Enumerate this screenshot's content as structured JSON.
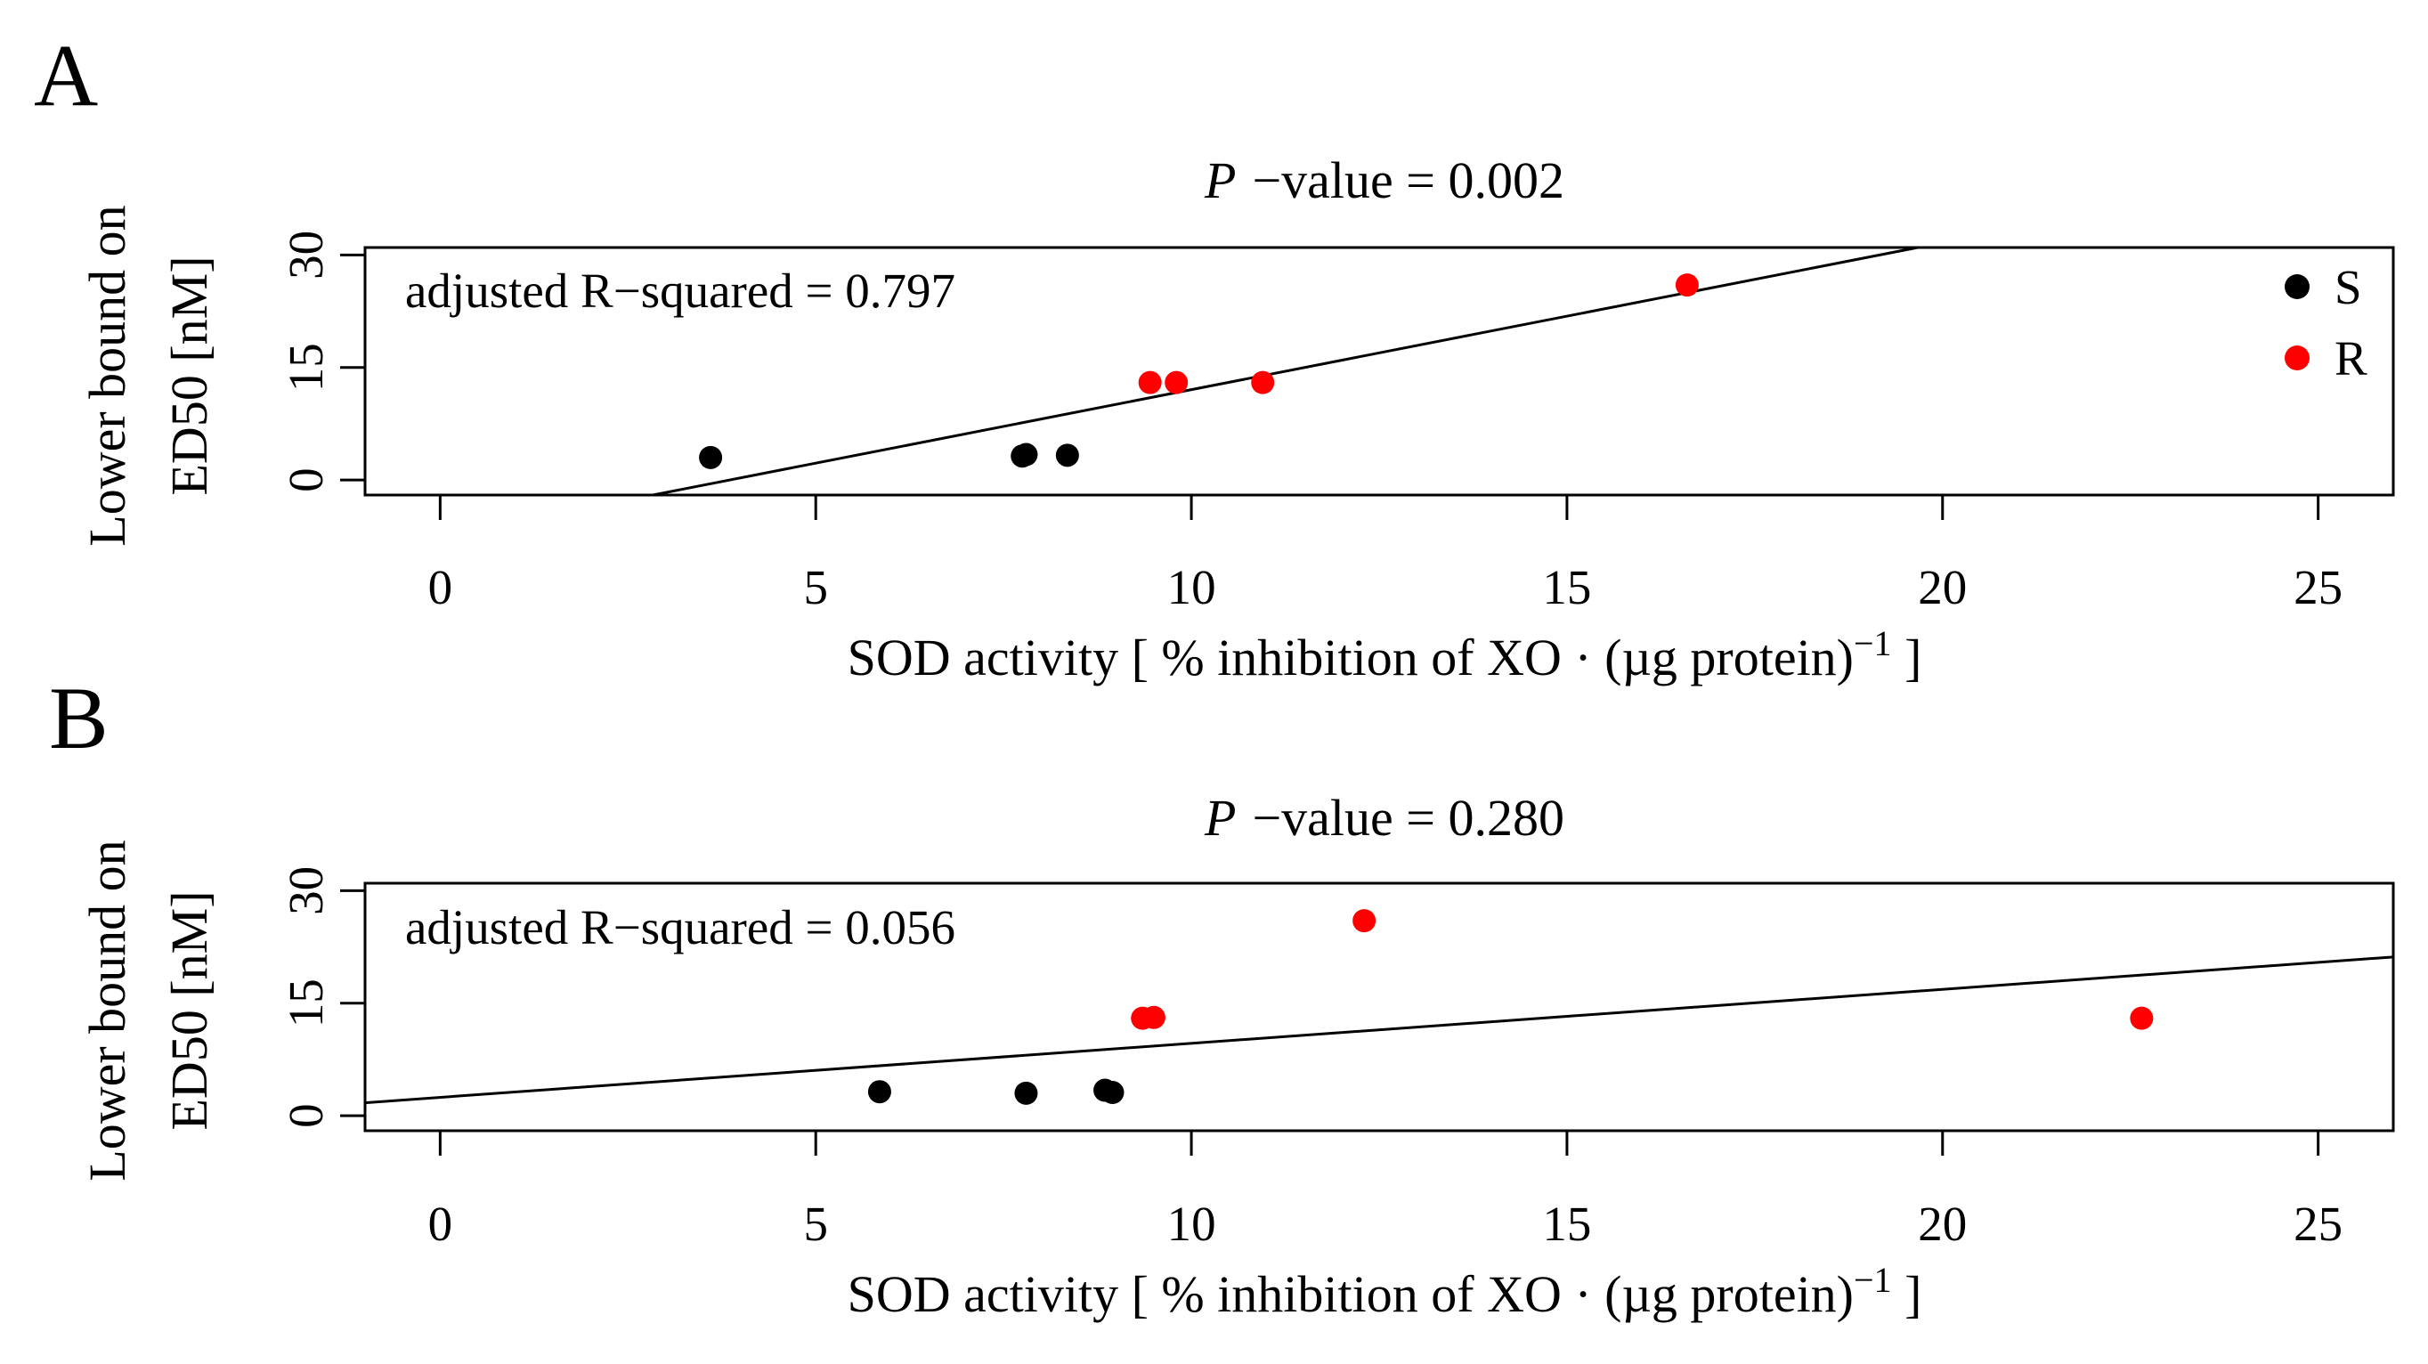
{
  "chart_data": [
    {
      "type": "scatter",
      "panel": "A",
      "title_prefix": "P",
      "title_suffix": "−value = 0.002",
      "annotation": "adjusted R−squared = 0.797",
      "xlabel_main": "SOD activity [ % inhibition of XO · (µg protein)",
      "xlabel_sup": "−1",
      "xlabel_end": " ]",
      "ylabel_line1": "Lower bound on",
      "ylabel_line2": "ED50 [nM]",
      "xlim": [
        -1,
        26
      ],
      "ylim": [
        -2,
        31
      ],
      "xticks": [
        0,
        5,
        10,
        15,
        20,
        25
      ],
      "yticks": [
        0,
        15,
        30
      ],
      "legend": [
        {
          "label": "S",
          "color": "#000000"
        },
        {
          "label": "R",
          "color": "#ff0000"
        }
      ],
      "series": [
        {
          "name": "S",
          "color": "#000000",
          "points": [
            [
              3.6,
              3
            ],
            [
              7.75,
              3.2
            ],
            [
              7.8,
              3.4
            ],
            [
              8.35,
              3.3
            ]
          ]
        },
        {
          "name": "R",
          "color": "#ff0000",
          "points": [
            [
              9.45,
              13
            ],
            [
              9.8,
              13
            ],
            [
              10.95,
              13
            ],
            [
              16.6,
              26
            ]
          ]
        }
      ],
      "regression": {
        "intercept": -7.55,
        "slope": 1.96
      }
    },
    {
      "type": "scatter",
      "panel": "B",
      "title_prefix": "P",
      "title_suffix": "−value = 0.280",
      "annotation": "adjusted R−squared = 0.056",
      "xlabel_main": "SOD activity [ % inhibition of XO · (µg protein)",
      "xlabel_sup": "−1",
      "xlabel_end": " ]",
      "ylabel_line1": "Lower bound on",
      "ylabel_line2": "ED50 [nM]",
      "xlim": [
        -1,
        26
      ],
      "ylim": [
        -2,
        31
      ],
      "xticks": [
        0,
        5,
        10,
        15,
        20,
        25
      ],
      "yticks": [
        0,
        15,
        30
      ],
      "legend": [],
      "series": [
        {
          "name": "S",
          "color": "#000000",
          "points": [
            [
              5.85,
              3.2
            ],
            [
              7.8,
              3
            ],
            [
              8.85,
              3.4
            ],
            [
              8.95,
              3.1
            ]
          ]
        },
        {
          "name": "R",
          "color": "#ff0000",
          "points": [
            [
              9.35,
              13
            ],
            [
              9.5,
              13.1
            ],
            [
              12.3,
              26
            ],
            [
              22.65,
              13
            ]
          ]
        }
      ],
      "regression": {
        "intercept": 2.45,
        "slope": 0.72
      }
    }
  ]
}
